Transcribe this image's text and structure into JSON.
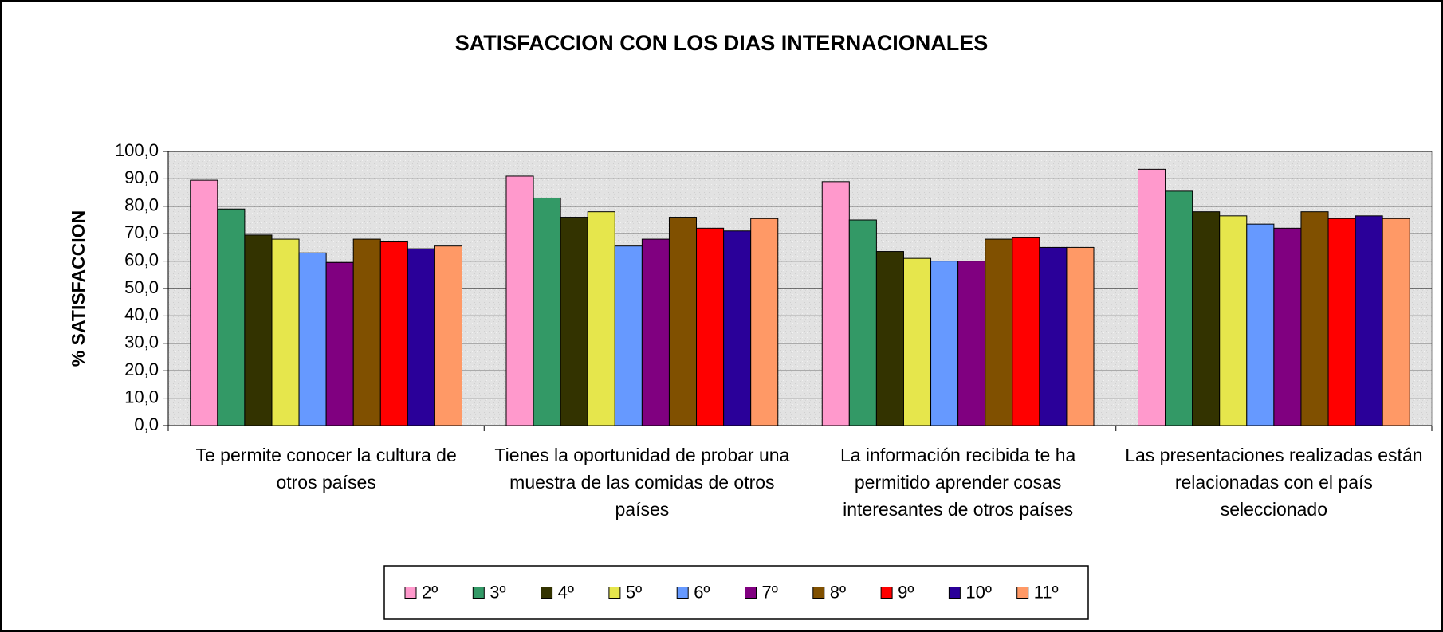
{
  "chart_data": {
    "type": "bar",
    "title": "SATISFACCION CON LOS DIAS INTERNACIONALES",
    "y_label": "% SATISFACCION",
    "categories": [
      "Te permite conocer la cultura de otros países",
      "Tienes la oportunidad de probar una muestra de las comidas de otros países",
      "La información recibida te ha permitido aprender cosas interesantes de otros países",
      "Las presentaciones realizadas están relacionadas con el país seleccionado"
    ],
    "series": [
      {
        "name": "2º",
        "color": "#ff99cc",
        "values": [
          89.5,
          91,
          89,
          93.5
        ]
      },
      {
        "name": "3º",
        "color": "#339966",
        "values": [
          79,
          83,
          75,
          85.5
        ]
      },
      {
        "name": "4º",
        "color": "#333300",
        "values": [
          69.5,
          76,
          63.5,
          78
        ]
      },
      {
        "name": "5º",
        "color": "#e6e64c",
        "values": [
          68,
          78,
          61,
          76.5
        ]
      },
      {
        "name": "6º",
        "color": "#6699ff",
        "values": [
          63,
          65.5,
          60,
          73.5
        ]
      },
      {
        "name": "7º",
        "color": "#800080",
        "values": [
          59.5,
          68,
          60,
          72
        ]
      },
      {
        "name": "8º",
        "color": "#805000",
        "values": [
          68,
          76,
          68,
          78
        ]
      },
      {
        "name": "9º",
        "color": "#ff0000",
        "values": [
          67,
          72,
          68.5,
          75.5
        ]
      },
      {
        "name": "10º",
        "color": "#2a0099",
        "values": [
          64.5,
          71,
          65,
          76.5
        ]
      },
      {
        "name": "11º",
        "color": "#ff9966",
        "values": [
          65.5,
          75.5,
          65,
          75.5
        ]
      }
    ],
    "ylim": [
      0,
      100
    ],
    "yticks": [
      {
        "value": 0,
        "label": "0,0"
      },
      {
        "value": 10,
        "label": "10,0"
      },
      {
        "value": 20,
        "label": "20,0"
      },
      {
        "value": 30,
        "label": "30,0"
      },
      {
        "value": 40,
        "label": "40,0"
      },
      {
        "value": 50,
        "label": "50,0"
      },
      {
        "value": 60,
        "label": "60,0"
      },
      {
        "value": 70,
        "label": "70,0"
      },
      {
        "value": 80,
        "label": "80,0"
      },
      {
        "value": 90,
        "label": "90,0"
      },
      {
        "value": 100,
        "label": "100,0"
      }
    ],
    "grid": true,
    "legend": "bottom"
  }
}
